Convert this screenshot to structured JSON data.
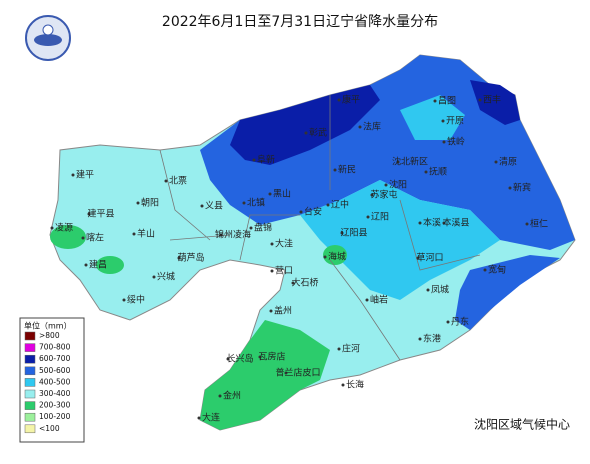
{
  "header": {
    "title": "2022年6月1日至7月31日辽宁省降水量分布"
  },
  "legend": {
    "title": "单位（mm）",
    "items": [
      {
        "label": ">800",
        "color": "#7b0000"
      },
      {
        "label": "700-800",
        "color": "#e000e0"
      },
      {
        "label": "600-700",
        "color": "#0a1ea8"
      },
      {
        "label": "500-600",
        "color": "#2464e0"
      },
      {
        "label": "400-500",
        "color": "#30c8f0"
      },
      {
        "label": "300-400",
        "color": "#98eeee"
      },
      {
        "label": "200-300",
        "color": "#2ccc6c"
      },
      {
        "label": "100-200",
        "color": "#9cf09c"
      },
      {
        "label": "<100",
        "color": "#f4f4a8"
      }
    ]
  },
  "footer": {
    "source": "沈阳区域气候中心"
  },
  "map": {
    "labels": [
      "建平",
      "北票",
      "阜新",
      "彰武",
      "康平",
      "法库",
      "昌图",
      "开原",
      "西丰",
      "铁岭",
      "沈北新区",
      "抚顺",
      "清原",
      "新宾",
      "新民",
      "沈阳",
      "苏家屯",
      "辽中",
      "黑山",
      "朝阳",
      "建平县",
      "凌源",
      "喀左",
      "羊山",
      "义县",
      "北镇",
      "锦州凌海",
      "葫芦岛",
      "建昌",
      "兴城",
      "绥中",
      "盘锦",
      "大洼",
      "台安",
      "辽阳",
      "辽阳县",
      "本溪",
      "本溪县",
      "桓仁",
      "海城",
      "营口",
      "大石桥",
      "盖州",
      "岫岩",
      "草河口",
      "宽甸",
      "凤城",
      "丹东",
      "东港",
      "庄河",
      "瓦房店",
      "长兴岛",
      "普兰店皮口",
      "长海",
      "金州",
      "大连"
    ]
  }
}
